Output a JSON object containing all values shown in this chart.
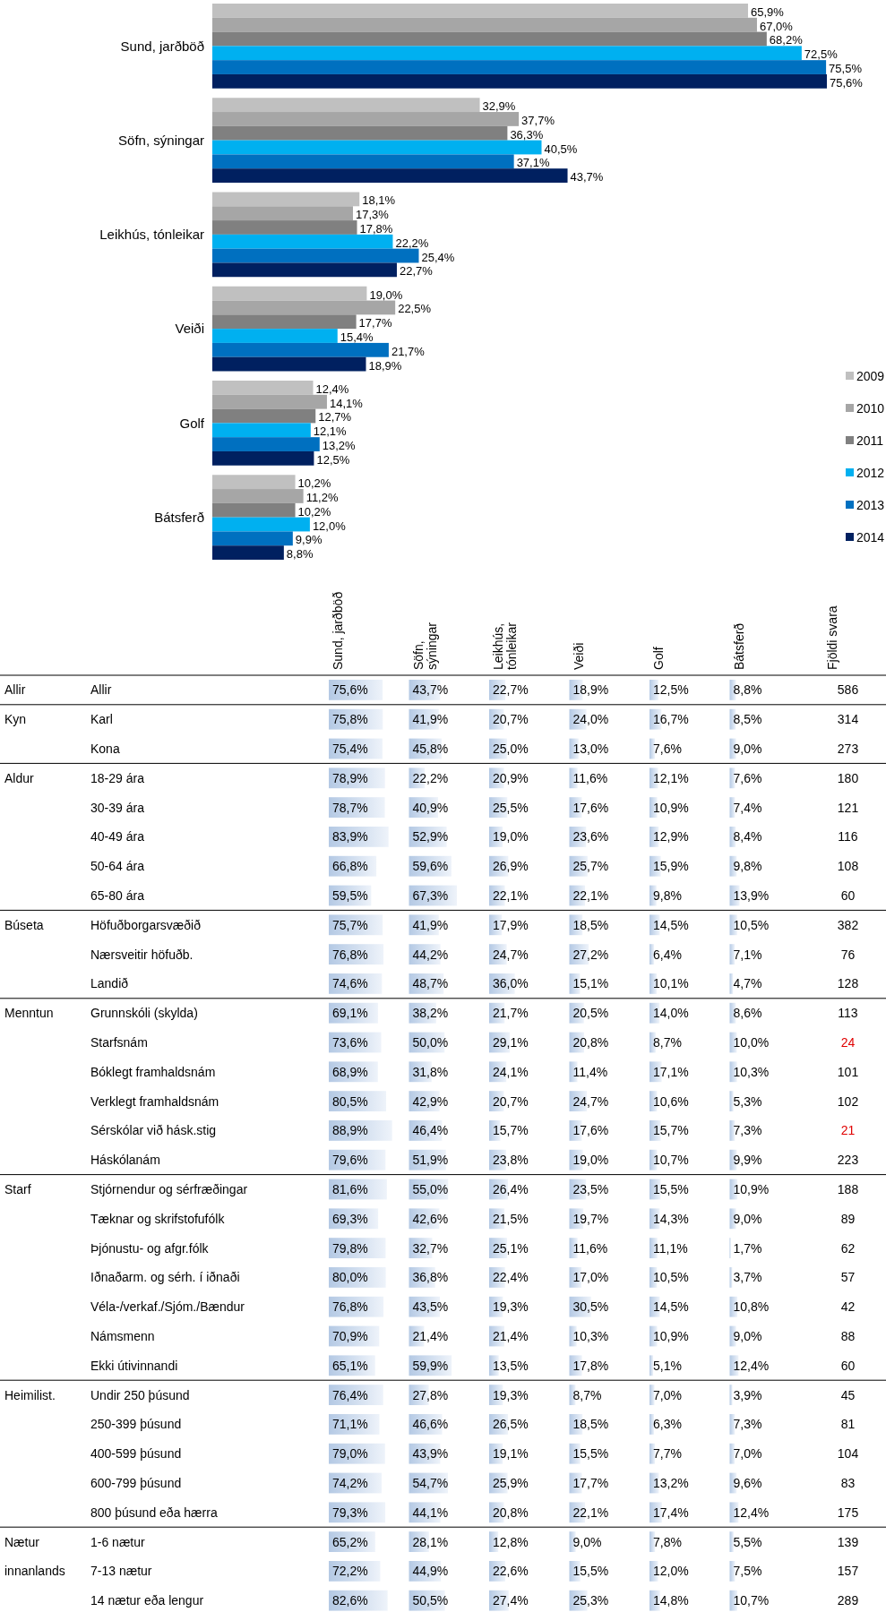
{
  "chart_data": [
    {
      "type": "bar",
      "orientation": "horizontal",
      "legend": "right",
      "categories": [
        "Sund, jarðböð",
        "Söfn, sýningar",
        "Leikhús, tónleikar",
        "Veiði",
        "Golf",
        "Bátsferð"
      ],
      "series": [
        {
          "name": "2009",
          "color": "#c0c0c0",
          "values": [
            65.9,
            32.9,
            18.1,
            19.0,
            12.4,
            10.2
          ],
          "value_labels": [
            "65,9%",
            "32,9%",
            "18,1%",
            "19,0%",
            "12,4%",
            "10,2%"
          ]
        },
        {
          "name": "2010",
          "color": "#a6a6a6",
          "values": [
            67.0,
            37.7,
            17.3,
            22.5,
            14.1,
            11.2
          ],
          "value_labels": [
            "67,0%",
            "37,7%",
            "17,3%",
            "22,5%",
            "14,1%",
            "11,2%"
          ]
        },
        {
          "name": "2011",
          "color": "#808080",
          "values": [
            68.2,
            36.3,
            17.8,
            17.7,
            12.7,
            10.2
          ],
          "value_labels": [
            "68,2%",
            "36,3%",
            "17,8%",
            "17,7%",
            "12,7%",
            "10,2%"
          ]
        },
        {
          "name": "2012",
          "color": "#00b0f0",
          "values": [
            72.5,
            40.5,
            22.2,
            15.4,
            12.1,
            12.0
          ],
          "value_labels": [
            "72,5%",
            "40,5%",
            "22,2%",
            "15,4%",
            "12,1%",
            "12,0%"
          ]
        },
        {
          "name": "2013",
          "color": "#0070c0",
          "values": [
            75.5,
            37.1,
            25.4,
            21.7,
            13.2,
            9.9
          ],
          "value_labels": [
            "75,5%",
            "37,1%",
            "25,4%",
            "21,7%",
            "13,2%",
            "9,9%"
          ]
        },
        {
          "name": "2014",
          "color": "#002060",
          "values": [
            75.6,
            43.7,
            22.7,
            18.9,
            12.5,
            8.8
          ],
          "value_labels": [
            "75,6%",
            "43,7%",
            "22,7%",
            "18,9%",
            "12,5%",
            "8,8%"
          ]
        }
      ]
    },
    {
      "type": "heatmap",
      "categories": [
        "Sund, jarðböð",
        "Söfn, sýningar",
        "Leikhús, tónleikar",
        "Veiði",
        "Golf",
        "Bátsferð"
      ],
      "y_categories": [
        "Allir",
        "Karl",
        "Kona",
        "18-29 ára",
        "30-39 ára",
        "40-49 ára",
        "50-64 ára",
        "65-80 ára",
        "Höfuðborgarsvæðið",
        "Nærsveitir höfuðb.",
        "Landið",
        "Grunnskóli (skylda)",
        "Starfsnám",
        "Bóklegt framhaldsnám",
        "Verklegt framhaldsnám",
        "Sérskólar við hásk.stig",
        "Háskólanám",
        "Stjórnendur og sérfræðingar",
        "Tæknar og skrifstofufólk",
        "Þjónustu- og afgr.fólk",
        "Iðnaðarm. og sérh. í iðnaði",
        "Véla-/verkaf./Sjóm./Bændur",
        "Námsmenn",
        "Ekki útivinnandi",
        "Undir 250 þúsund",
        "250-399 þúsund",
        "400-599 þúsund",
        "600-799 þúsund",
        "800 þúsund eða hærra",
        "1-6 nætur",
        "7-13 nætur",
        "14 nætur eða lengur"
      ],
      "y2_categories": [
        "Allir",
        "Kyn",
        null,
        "Aldur",
        null,
        null,
        null,
        null,
        "Búseta",
        null,
        null,
        "Menntun",
        null,
        null,
        null,
        null,
        null,
        "Starf",
        null,
        null,
        null,
        null,
        null,
        null,
        "Heimilist.",
        null,
        null,
        null,
        null,
        "Nætur innanlands",
        null,
        null
      ],
      "cells": [
        [
          75.6,
          43.7,
          22.7,
          18.9,
          12.5,
          8.8
        ],
        [
          75.8,
          41.9,
          20.7,
          24.0,
          16.7,
          8.5
        ],
        [
          75.4,
          45.8,
          25.0,
          13.0,
          7.6,
          9.0
        ],
        [
          78.9,
          22.2,
          20.9,
          11.6,
          12.1,
          7.6
        ],
        [
          78.7,
          40.9,
          25.5,
          17.6,
          10.9,
          7.4
        ],
        [
          83.9,
          52.9,
          19.0,
          23.6,
          12.9,
          8.4
        ],
        [
          66.8,
          59.6,
          26.9,
          25.7,
          15.9,
          9.8
        ],
        [
          59.5,
          67.3,
          22.1,
          22.1,
          9.8,
          13.9
        ],
        [
          75.7,
          41.9,
          17.9,
          18.5,
          14.5,
          10.5
        ],
        [
          76.8,
          44.2,
          24.7,
          27.2,
          6.4,
          7.1
        ],
        [
          74.6,
          48.7,
          36.0,
          15.1,
          10.1,
          4.7
        ],
        [
          69.1,
          38.2,
          21.7,
          20.5,
          14.0,
          8.6
        ],
        [
          73.6,
          50.0,
          29.1,
          20.8,
          8.7,
          10.0
        ],
        [
          68.9,
          31.8,
          24.1,
          11.4,
          17.1,
          10.3
        ],
        [
          80.5,
          42.9,
          20.7,
          24.7,
          10.6,
          5.3
        ],
        [
          88.9,
          46.4,
          15.7,
          17.6,
          15.7,
          7.3
        ],
        [
          79.6,
          51.9,
          23.8,
          19.0,
          10.7,
          9.9
        ],
        [
          81.6,
          55.0,
          26.4,
          23.5,
          15.5,
          10.9
        ],
        [
          69.3,
          42.6,
          21.5,
          19.7,
          14.3,
          9.0
        ],
        [
          79.8,
          32.7,
          25.1,
          11.6,
          11.1,
          1.7
        ],
        [
          80.0,
          36.8,
          22.4,
          17.0,
          10.5,
          3.7
        ],
        [
          76.8,
          43.5,
          19.3,
          30.5,
          14.5,
          10.8
        ],
        [
          70.9,
          21.4,
          21.4,
          10.3,
          10.9,
          9.0
        ],
        [
          65.1,
          59.9,
          13.5,
          17.8,
          5.1,
          12.4
        ],
        [
          76.4,
          27.8,
          19.3,
          8.7,
          7.0,
          3.9
        ],
        [
          71.1,
          46.6,
          26.5,
          18.5,
          6.3,
          7.3
        ],
        [
          79.0,
          43.9,
          19.1,
          15.5,
          7.7,
          7.0
        ],
        [
          74.2,
          54.7,
          25.9,
          17.7,
          13.2,
          9.6
        ],
        [
          79.3,
          44.1,
          20.8,
          22.1,
          17.4,
          12.4
        ],
        [
          65.2,
          28.1,
          12.8,
          9.0,
          7.8,
          5.5
        ],
        [
          72.2,
          44.9,
          22.6,
          15.5,
          12.0,
          7.5
        ],
        [
          82.6,
          50.5,
          27.4,
          25.3,
          14.8,
          10.7
        ]
      ],
      "cell_labels": [
        [
          "75,6%",
          "43,7%",
          "22,7%",
          "18,9%",
          "12,5%",
          "8,8%"
        ],
        [
          "75,8%",
          "41,9%",
          "20,7%",
          "24,0%",
          "16,7%",
          "8,5%"
        ],
        [
          "75,4%",
          "45,8%",
          "25,0%",
          "13,0%",
          "7,6%",
          "9,0%"
        ],
        [
          "78,9%",
          "22,2%",
          "20,9%",
          "11,6%",
          "12,1%",
          "7,6%"
        ],
        [
          "78,7%",
          "40,9%",
          "25,5%",
          "17,6%",
          "10,9%",
          "7,4%"
        ],
        [
          "83,9%",
          "52,9%",
          "19,0%",
          "23,6%",
          "12,9%",
          "8,4%"
        ],
        [
          "66,8%",
          "59,6%",
          "26,9%",
          "25,7%",
          "15,9%",
          "9,8%"
        ],
        [
          "59,5%",
          "67,3%",
          "22,1%",
          "22,1%",
          "9,8%",
          "13,9%"
        ],
        [
          "75,7%",
          "41,9%",
          "17,9%",
          "18,5%",
          "14,5%",
          "10,5%"
        ],
        [
          "76,8%",
          "44,2%",
          "24,7%",
          "27,2%",
          "6,4%",
          "7,1%"
        ],
        [
          "74,6%",
          "48,7%",
          "36,0%",
          "15,1%",
          "10,1%",
          "4,7%"
        ],
        [
          "69,1%",
          "38,2%",
          "21,7%",
          "20,5%",
          "14,0%",
          "8,6%"
        ],
        [
          "73,6%",
          "50,0%",
          "29,1%",
          "20,8%",
          "8,7%",
          "10,0%"
        ],
        [
          "68,9%",
          "31,8%",
          "24,1%",
          "11,4%",
          "17,1%",
          "10,3%"
        ],
        [
          "80,5%",
          "42,9%",
          "20,7%",
          "24,7%",
          "10,6%",
          "5,3%"
        ],
        [
          "88,9%",
          "46,4%",
          "15,7%",
          "17,6%",
          "15,7%",
          "7,3%"
        ],
        [
          "79,6%",
          "51,9%",
          "23,8%",
          "19,0%",
          "10,7%",
          "9,9%"
        ],
        [
          "81,6%",
          "55,0%",
          "26,4%",
          "23,5%",
          "15,5%",
          "10,9%"
        ],
        [
          "69,3%",
          "42,6%",
          "21,5%",
          "19,7%",
          "14,3%",
          "9,0%"
        ],
        [
          "79,8%",
          "32,7%",
          "25,1%",
          "11,6%",
          "11,1%",
          "1,7%"
        ],
        [
          "80,0%",
          "36,8%",
          "22,4%",
          "17,0%",
          "10,5%",
          "3,7%"
        ],
        [
          "76,8%",
          "43,5%",
          "19,3%",
          "30,5%",
          "14,5%",
          "10,8%"
        ],
        [
          "70,9%",
          "21,4%",
          "21,4%",
          "10,3%",
          "10,9%",
          "9,0%"
        ],
        [
          "65,1%",
          "59,9%",
          "13,5%",
          "17,8%",
          "5,1%",
          "12,4%"
        ],
        [
          "76,4%",
          "27,8%",
          "19,3%",
          "8,7%",
          "7,0%",
          "3,9%"
        ],
        [
          "71,1%",
          "46,6%",
          "26,5%",
          "18,5%",
          "6,3%",
          "7,3%"
        ],
        [
          "79,0%",
          "43,9%",
          "19,1%",
          "15,5%",
          "7,7%",
          "7,0%"
        ],
        [
          "74,2%",
          "54,7%",
          "25,9%",
          "17,7%",
          "13,2%",
          "9,6%"
        ],
        [
          "79,3%",
          "44,1%",
          "20,8%",
          "22,1%",
          "17,4%",
          "12,4%"
        ],
        [
          "65,2%",
          "28,1%",
          "12,8%",
          "9,0%",
          "7,8%",
          "5,5%"
        ],
        [
          "72,2%",
          "44,9%",
          "22,6%",
          "15,5%",
          "12,0%",
          "7,5%"
        ],
        [
          "82,6%",
          "50,5%",
          "27,4%",
          "25,3%",
          "14,8%",
          "10,7%"
        ]
      ]
    },
    {
      "type": "other",
      "title": "Fjöldi svara",
      "data_labels": true,
      "values": [
        586,
        314,
        273,
        180,
        121,
        116,
        108,
        60,
        382,
        76,
        128,
        113,
        24,
        101,
        102,
        21,
        223,
        188,
        89,
        62,
        57,
        42,
        88,
        60,
        45,
        81,
        104,
        83,
        175,
        139,
        157,
        289
      ],
      "colors": [
        "#000000",
        "#000000",
        "#000000",
        "#000000",
        "#000000",
        "#000000",
        "#000000",
        "#000000",
        "#000000",
        "#000000",
        "#000000",
        "#000000",
        "#e00000",
        "#000000",
        "#000000",
        "#e00000",
        "#000000",
        "#000000",
        "#000000",
        "#000000",
        "#000000",
        "#000000",
        "#000000",
        "#000000",
        "#000000",
        "#000000",
        "#000000",
        "#000000",
        "#000000",
        "#000000",
        "#000000",
        "#000000"
      ]
    }
  ]
}
